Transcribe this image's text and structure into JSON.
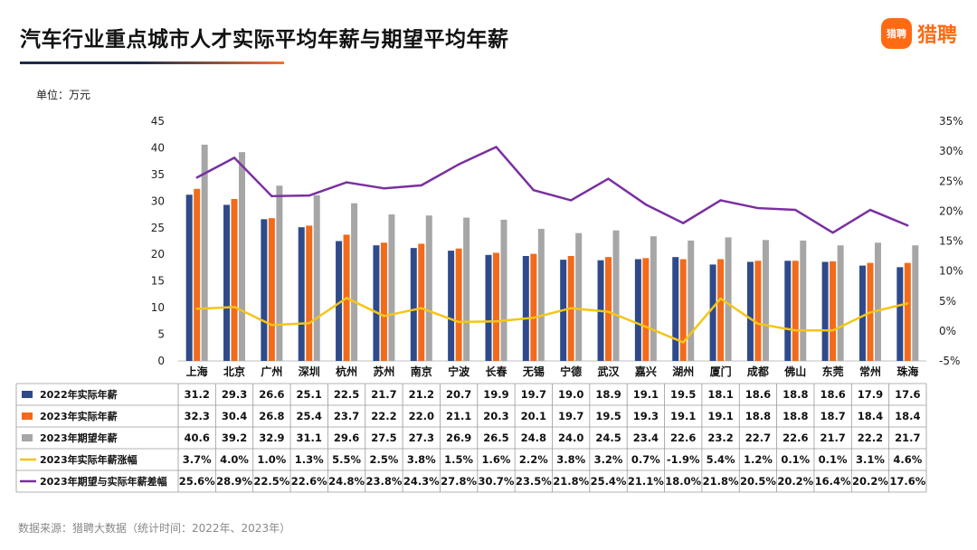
{
  "title": "汽车行业重点城市人才实际平均年薪与期望平均年薪",
  "logo": {
    "badge": "猎聘",
    "text": "猎聘"
  },
  "unit_label": "单位：万元",
  "footer": "数据来源：猎聘大数据（统计时间：2022年、2023年）",
  "colors": {
    "s2022": "#2f4a8a",
    "s2023": "#f26a1b",
    "expect": "#a6a6a6",
    "growth": "#f5c518",
    "gap": "#7a2fa1"
  },
  "chart_data": {
    "type": "bar",
    "categories": [
      "上海",
      "北京",
      "广州",
      "深圳",
      "杭州",
      "苏州",
      "南京",
      "宁波",
      "长春",
      "无锡",
      "宁德",
      "武汉",
      "嘉兴",
      "湖州",
      "厦门",
      "成都",
      "佛山",
      "东莞",
      "常州",
      "珠海"
    ],
    "ylim": [
      0,
      45
    ],
    "y_ticks": [
      "0",
      "5",
      "10",
      "15",
      "20",
      "25",
      "30",
      "35",
      "40",
      "45"
    ],
    "y2lim": [
      -5,
      35
    ],
    "y2_ticks": [
      "-5%",
      "0%",
      "5%",
      "10%",
      "15%",
      "20%",
      "25%",
      "30%",
      "35%"
    ],
    "series": [
      {
        "name": "2022年实际年薪",
        "kind": "bar",
        "values": [
          31.2,
          29.3,
          26.6,
          25.1,
          22.5,
          21.7,
          21.2,
          20.7,
          19.9,
          19.7,
          19.0,
          18.9,
          19.1,
          19.5,
          18.1,
          18.6,
          18.8,
          18.6,
          17.9,
          17.6
        ],
        "labels": [
          "31.2",
          "29.3",
          "26.6",
          "25.1",
          "22.5",
          "21.7",
          "21.2",
          "20.7",
          "19.9",
          "19.7",
          "19.0",
          "18.9",
          "19.1",
          "19.5",
          "18.1",
          "18.6",
          "18.8",
          "18.6",
          "17.9",
          "17.6"
        ]
      },
      {
        "name": "2023年实际年薪",
        "kind": "bar",
        "values": [
          32.3,
          30.4,
          26.8,
          25.4,
          23.7,
          22.2,
          22.0,
          21.1,
          20.3,
          20.1,
          19.7,
          19.5,
          19.3,
          19.1,
          19.1,
          18.8,
          18.8,
          18.7,
          18.4,
          18.4
        ],
        "labels": [
          "32.3",
          "30.4",
          "26.8",
          "25.4",
          "23.7",
          "22.2",
          "22.0",
          "21.1",
          "20.3",
          "20.1",
          "19.7",
          "19.5",
          "19.3",
          "19.1",
          "19.1",
          "18.8",
          "18.8",
          "18.7",
          "18.4",
          "18.4"
        ]
      },
      {
        "name": "2023年期望年薪",
        "kind": "bar",
        "values": [
          40.6,
          39.2,
          32.9,
          31.1,
          29.6,
          27.5,
          27.3,
          26.9,
          26.5,
          24.8,
          24.0,
          24.5,
          23.4,
          22.6,
          23.2,
          22.7,
          22.6,
          21.7,
          22.2,
          21.7
        ],
        "labels": [
          "40.6",
          "39.2",
          "32.9",
          "31.1",
          "29.6",
          "27.5",
          "27.3",
          "26.9",
          "26.5",
          "24.8",
          "24.0",
          "24.5",
          "23.4",
          "22.6",
          "23.2",
          "22.7",
          "22.6",
          "21.7",
          "22.2",
          "21.7"
        ]
      },
      {
        "name": "2023年实际年薪涨幅",
        "kind": "line",
        "axis": "right",
        "values": [
          3.7,
          4.0,
          1.0,
          1.3,
          5.5,
          2.5,
          3.8,
          1.5,
          1.6,
          2.2,
          3.8,
          3.2,
          0.7,
          -1.9,
          5.4,
          1.2,
          0.1,
          0.1,
          3.1,
          4.6
        ],
        "labels": [
          "3.7%",
          "4.0%",
          "1.0%",
          "1.3%",
          "5.5%",
          "2.5%",
          "3.8%",
          "1.5%",
          "1.6%",
          "2.2%",
          "3.8%",
          "3.2%",
          "0.7%",
          "-1.9%",
          "5.4%",
          "1.2%",
          "0.1%",
          "0.1%",
          "3.1%",
          "4.6%"
        ]
      },
      {
        "name": "2023年期望与实际年薪差幅",
        "kind": "line",
        "axis": "right",
        "values": [
          25.6,
          28.9,
          22.5,
          22.6,
          24.8,
          23.8,
          24.3,
          27.8,
          30.7,
          23.5,
          21.8,
          25.4,
          21.1,
          18.0,
          21.8,
          20.5,
          20.2,
          16.4,
          20.2,
          17.6
        ],
        "labels": [
          "25.6%",
          "28.9%",
          "22.5%",
          "22.6%",
          "24.8%",
          "23.8%",
          "24.3%",
          "27.8%",
          "30.7%",
          "23.5%",
          "21.8%",
          "25.4%",
          "21.1%",
          "18.0%",
          "21.8%",
          "20.5%",
          "20.2%",
          "16.4%",
          "20.2%",
          "17.6%"
        ]
      }
    ],
    "grid": false,
    "legend": "table-left"
  }
}
